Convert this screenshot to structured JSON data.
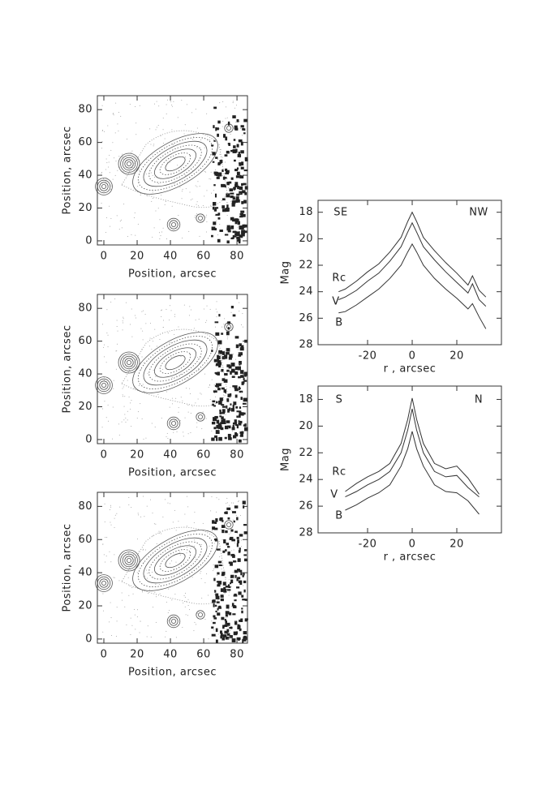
{
  "chart_data": [
    {
      "type": "contour",
      "xlabel": "Position, arcsec",
      "ylabel": "Position, arcsec",
      "xlim": [
        -3.9,
        86.3
      ],
      "ylim": [
        -2.5,
        88.5
      ],
      "xticks": [
        0,
        20,
        40,
        60,
        80
      ],
      "yticks": [
        0,
        20,
        40,
        60,
        80
      ]
    },
    {
      "type": "contour",
      "xlabel": "Position, arcsec",
      "ylabel": "Position, arcsec",
      "xlim": [
        -3.9,
        86.3
      ],
      "ylim": [
        -2.5,
        88.5
      ],
      "xticks": [
        0,
        20,
        40,
        60,
        80
      ],
      "yticks": [
        0,
        20,
        40,
        60,
        80
      ]
    },
    {
      "type": "contour",
      "xlabel": "Position, arcsec",
      "ylabel": "Position, arcsec",
      "xlim": [
        -3.9,
        86.3
      ],
      "ylim": [
        -2.5,
        88.5
      ],
      "xticks": [
        0,
        20,
        40,
        60,
        80
      ],
      "yticks": [
        0,
        20,
        40,
        60,
        80
      ]
    },
    {
      "type": "line",
      "xlabel": "r , arcsec",
      "ylabel": "Mag",
      "annotations": [
        "SE",
        "NW"
      ],
      "xlim": [
        -42.2,
        40
      ],
      "ylim": [
        28,
        17.1
      ],
      "xticks": [
        -20,
        0,
        20
      ],
      "yticks": [
        18,
        20,
        22,
        24,
        26,
        28
      ],
      "x": [
        -33,
        -30,
        -25,
        -20,
        -15,
        -10,
        -5,
        -2,
        0,
        2,
        5,
        10,
        15,
        20,
        25,
        27,
        30,
        33
      ],
      "series": [
        {
          "name": "Rc",
          "color": "#333",
          "values": [
            24.0,
            23.8,
            23.2,
            22.5,
            21.9,
            21.0,
            19.9,
            18.7,
            18.0,
            18.7,
            19.9,
            20.9,
            21.8,
            22.6,
            23.5,
            22.8,
            23.9,
            24.4
          ]
        },
        {
          "name": "V",
          "color": "#333",
          "values": [
            24.6,
            24.4,
            23.9,
            23.2,
            22.6,
            21.7,
            20.6,
            19.5,
            18.8,
            19.5,
            20.6,
            21.6,
            22.5,
            23.3,
            24.1,
            23.4,
            24.6,
            25.1
          ]
        },
        {
          "name": "B",
          "color": "#333",
          "values": [
            25.6,
            25.5,
            25.0,
            24.4,
            23.8,
            23.0,
            22.0,
            21.0,
            20.4,
            21.0,
            22.0,
            23.0,
            23.8,
            24.5,
            25.3,
            24.9,
            25.9,
            26.8
          ]
        }
      ]
    },
    {
      "type": "line",
      "xlabel": "r , arcsec",
      "ylabel": "Mag",
      "annotations": [
        "S",
        "N"
      ],
      "xlim": [
        -42.2,
        40
      ],
      "ylim": [
        28,
        17.0
      ],
      "xticks": [
        -20,
        0,
        20
      ],
      "yticks": [
        18,
        20,
        22,
        24,
        26,
        28
      ],
      "x": [
        -30,
        -25,
        -20,
        -15,
        -10,
        -5,
        -2,
        0,
        2,
        5,
        10,
        15,
        20,
        25,
        30
      ],
      "series": [
        {
          "name": "Rc",
          "color": "#333",
          "values": [
            24.9,
            24.3,
            23.8,
            23.4,
            22.8,
            21.3,
            19.5,
            17.9,
            19.5,
            21.3,
            22.8,
            23.2,
            23.0,
            23.9,
            25.1
          ]
        },
        {
          "name": "V",
          "color": "#333",
          "values": [
            25.3,
            24.9,
            24.4,
            24.0,
            23.4,
            22.0,
            20.3,
            18.7,
            20.3,
            22.0,
            23.4,
            23.8,
            23.7,
            24.6,
            25.3
          ]
        },
        {
          "name": "B",
          "color": "#333",
          "values": [
            26.3,
            25.9,
            25.4,
            25.0,
            24.4,
            23.0,
            21.7,
            20.4,
            21.7,
            23.0,
            24.4,
            24.9,
            25.0,
            25.6,
            26.6
          ]
        }
      ]
    }
  ]
}
